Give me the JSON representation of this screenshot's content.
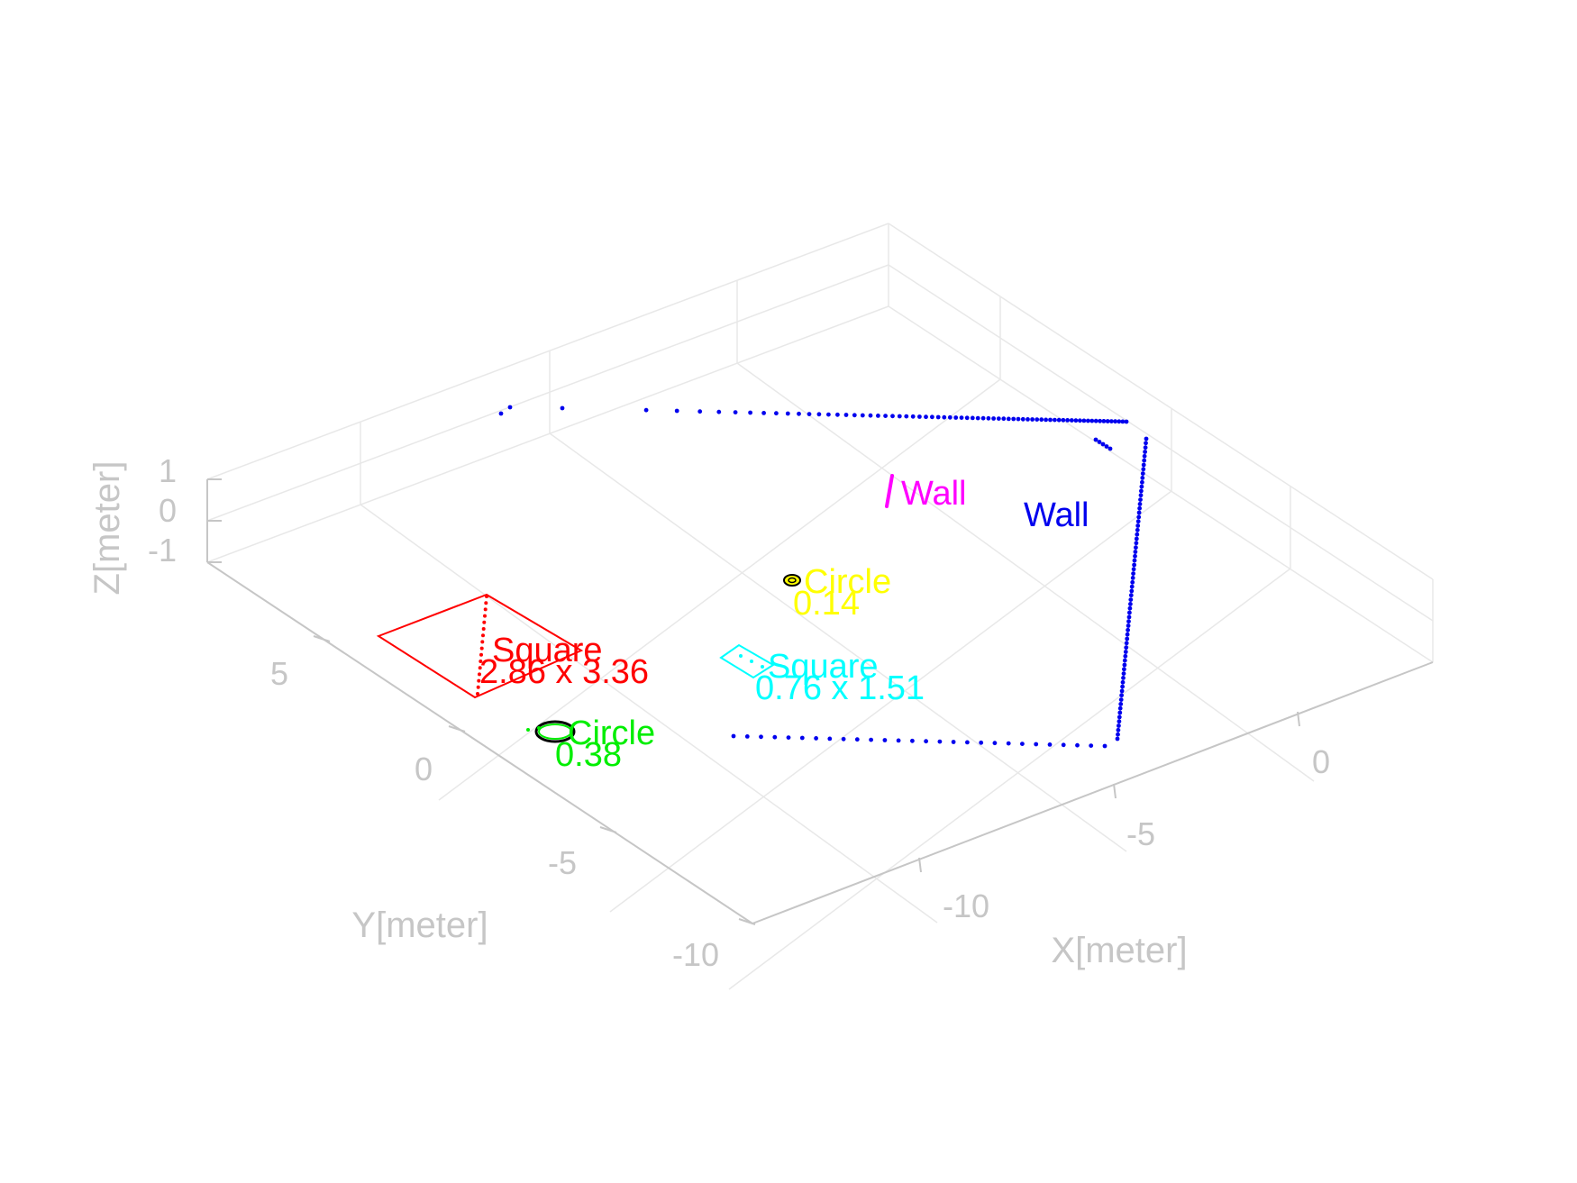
{
  "chart_data": {
    "type": "scatter3d",
    "title": "",
    "xlabel": "X[meter]",
    "ylabel": "Y[meter]",
    "zlabel": "Z[meter]",
    "xlim": [
      -15,
      5
    ],
    "ylim": [
      -12,
      10
    ],
    "zlim": [
      -1,
      1
    ],
    "grid": true,
    "x_ticks": [
      "-10",
      "-5",
      "0"
    ],
    "y_ticks": [
      "5",
      "0",
      "-5",
      "-10"
    ],
    "z_ticks": [
      "1",
      "0",
      "-1"
    ],
    "colors": {
      "axis": "#c6c6c6",
      "grid": "#e8e8e8",
      "wall_blue": "#0000ee",
      "wall_magenta": "#ff00ff",
      "square_red": "#ff0000",
      "square_cyan": "#00ffff",
      "circle_green": "#00ee00",
      "circle_yellow": "#ffff00",
      "outline": "#000000"
    },
    "objects": [
      {
        "kind": "Wall",
        "color": "#ff00ff",
        "label": "Wall"
      },
      {
        "kind": "Wall",
        "color": "#0000ee",
        "label": "Wall"
      },
      {
        "kind": "Circle",
        "color": "#ffff00",
        "label": "Circle",
        "size_label": "0.14",
        "diameter": 0.14
      },
      {
        "kind": "Square",
        "color": "#ff0000",
        "label": "Square",
        "size_label": "2.86 x 3.36",
        "width": 2.86,
        "length": 3.36
      },
      {
        "kind": "Square",
        "color": "#00ffff",
        "label": "Square",
        "size_label": "0.76 x 1.51",
        "width": 0.76,
        "length": 1.51
      },
      {
        "kind": "Circle",
        "color": "#00ee00",
        "label": "Circle",
        "size_label": "0.38",
        "diameter": 0.38
      }
    ]
  }
}
